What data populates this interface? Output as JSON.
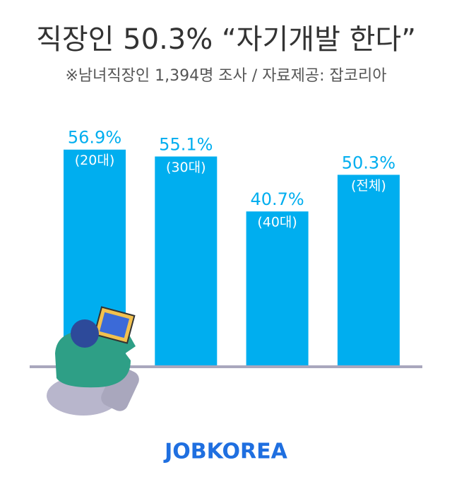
{
  "chart_data": {
    "type": "bar",
    "title": "직장인 50.3% “자기개발 한다”",
    "subtitle": "※남녀직장인 1,394명 조사 / 자료제공: 잡코리아",
    "categories": [
      "(20대)",
      "(30대)",
      "(40대)",
      "(전체)"
    ],
    "values": [
      56.9,
      55.1,
      40.7,
      50.3
    ],
    "value_labels": [
      "56.9%",
      "55.1%",
      "40.7%",
      "50.3%"
    ],
    "color": "#00aeef"
  },
  "logo": "JOBKOREA"
}
